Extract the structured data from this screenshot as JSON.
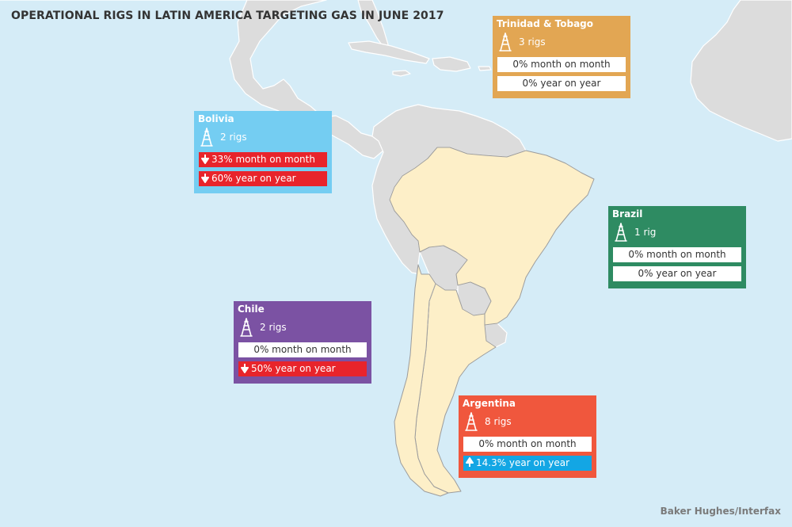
{
  "title": "OPERATIONAL RIGS IN LATIN AMERICA TARGETING GAS IN JUNE 2017",
  "source": "Baker Hughes/Interfax",
  "icons": {
    "rig": "oil-rig-icon",
    "down": "arrow-down-icon",
    "up": "arrow-up-icon"
  },
  "colors": {
    "ocean": "#d5ecf7",
    "land": "#dcdcdc",
    "south_america": "#fdefc8",
    "decrease": "#e8242b",
    "increase": "#13a6e4"
  },
  "regions": [
    {
      "id": "trinidad-tobago",
      "name": "Trinidad & Tobago",
      "color": "#e2a653",
      "rigs": "3 rigs",
      "month_change": {
        "text": "0% month on month",
        "trend": "neutral"
      },
      "year_change": {
        "text": "0% year on year",
        "trend": "neutral"
      }
    },
    {
      "id": "bolivia",
      "name": "Bolivia",
      "color": "#74cdf2",
      "rigs": "2 rigs",
      "month_change": {
        "text": "33% month on month",
        "trend": "down"
      },
      "year_change": {
        "text": "60% year on year",
        "trend": "down"
      }
    },
    {
      "id": "brazil",
      "name": "Brazil",
      "color": "#2e8b62",
      "rigs": "1 rig",
      "month_change": {
        "text": "0% month on month",
        "trend": "neutral"
      },
      "year_change": {
        "text": "0% year on year",
        "trend": "neutral"
      }
    },
    {
      "id": "chile",
      "name": "Chile",
      "color": "#7b52a3",
      "rigs": "2 rigs",
      "month_change": {
        "text": "0% month on month",
        "trend": "neutral"
      },
      "year_change": {
        "text": "50% year on year",
        "trend": "down"
      }
    },
    {
      "id": "argentina",
      "name": "Argentina",
      "color": "#f0573d",
      "rigs": "8 rigs",
      "month_change": {
        "text": "0% month on month",
        "trend": "neutral"
      },
      "year_change": {
        "text": "14.3% year on year",
        "trend": "up"
      }
    }
  ]
}
